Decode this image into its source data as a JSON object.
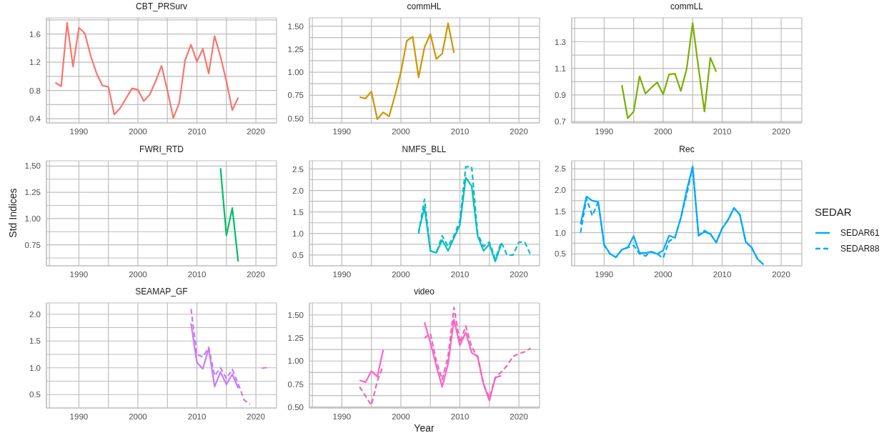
{
  "chart_data": [
    {
      "type": "line",
      "title": "CBT_PRSurv",
      "x": [
        1986,
        1987,
        1988,
        1989,
        1990,
        1991,
        1992,
        1993,
        1994,
        1995,
        1996,
        1997,
        1998,
        1999,
        2000,
        2001,
        2002,
        2003,
        2004,
        2005,
        2006,
        2007,
        2008,
        2009,
        2010,
        2011,
        2012,
        2013,
        2014,
        2015,
        2016,
        2017
      ],
      "series": [
        {
          "color": "#f8766d",
          "line_style": "solid",
          "values": [
            0.91,
            0.86,
            1.76,
            1.14,
            1.69,
            1.61,
            1.29,
            1.04,
            0.87,
            0.85,
            0.46,
            0.55,
            0.69,
            0.83,
            0.81,
            0.65,
            0.74,
            0.93,
            1.15,
            0.8,
            0.41,
            0.62,
            1.23,
            1.45,
            1.21,
            1.39,
            1.04,
            1.57,
            1.28,
            0.93,
            0.52,
            0.7
          ]
        }
      ],
      "xlim": [
        1984.5,
        2023.5
      ],
      "xticks": [
        {
          "value": 1985,
          "label": null
        },
        1990,
        {
          "value": 1995,
          "label": null
        },
        2000,
        {
          "value": 2005,
          "label": null
        },
        2010,
        {
          "value": 2015,
          "label": null
        },
        2020
      ],
      "ylim": [
        0.34,
        1.83
      ],
      "yticks": [
        0.4,
        {
          "value": 0.6,
          "label": null
        },
        0.8,
        {
          "value": 1.0,
          "label": null
        },
        1.2,
        {
          "value": 1.4,
          "label": null
        },
        1.6,
        {
          "value": 1.8,
          "label": null
        }
      ],
      "grid": true
    },
    {
      "type": "line",
      "title": "commHL",
      "x": [
        1993,
        1994,
        1995,
        1996,
        1997,
        1998,
        1999,
        2000,
        2001,
        2002,
        2003,
        2004,
        2005,
        2006,
        2007,
        2008,
        2009
      ],
      "series": [
        {
          "color": "#cd9600",
          "line_style": "solid",
          "values": [
            0.73,
            0.715,
            0.79,
            0.49,
            0.565,
            0.52,
            0.75,
            1.0,
            1.34,
            1.385,
            0.945,
            1.27,
            1.415,
            1.145,
            1.2,
            1.53,
            1.21
          ]
        }
      ],
      "xlim": [
        1984.5,
        2023.5
      ],
      "xticks": [
        {
          "value": 1985,
          "label": null
        },
        1990,
        {
          "value": 1995,
          "label": null
        },
        2000,
        {
          "value": 2005,
          "label": null
        },
        2010,
        {
          "value": 2015,
          "label": null
        },
        2020
      ],
      "ylim": [
        0.45,
        1.59
      ],
      "yticks": [
        {
          "value": 0.5,
          "label": "0.50"
        },
        {
          "value": 0.625,
          "label": null
        },
        {
          "value": 0.75,
          "label": "0.75"
        },
        {
          "value": 0.875,
          "label": null
        },
        {
          "value": 1.0,
          "label": "1.00"
        },
        {
          "value": 1.125,
          "label": null
        },
        {
          "value": 1.25,
          "label": "1.25"
        },
        {
          "value": 1.375,
          "label": null
        },
        {
          "value": 1.5,
          "label": "1.50"
        }
      ],
      "grid": true
    },
    {
      "type": "line",
      "title": "commLL",
      "x": [
        1993,
        1994,
        1995,
        1996,
        1997,
        1998,
        1999,
        2000,
        2001,
        2002,
        2003,
        2004,
        2005,
        2006,
        2007,
        2008,
        2009
      ],
      "series": [
        {
          "color": "#7cae00",
          "line_style": "solid",
          "values": [
            0.975,
            0.725,
            0.775,
            1.04,
            0.91,
            0.955,
            0.995,
            0.905,
            1.055,
            1.06,
            0.93,
            1.1,
            1.44,
            1.1,
            0.775,
            1.18,
            1.075
          ]
        }
      ],
      "xlim": [
        1984.5,
        2023.5
      ],
      "xticks": [
        {
          "value": 1985,
          "label": null
        },
        1990,
        {
          "value": 1995,
          "label": null
        },
        2000,
        {
          "value": 2005,
          "label": null
        },
        2010,
        {
          "value": 2015,
          "label": null
        },
        2020
      ],
      "ylim": [
        0.69,
        1.48
      ],
      "yticks": [
        0.7,
        {
          "value": 0.8,
          "label": null
        },
        0.9,
        {
          "value": 1.0,
          "label": null
        },
        1.1,
        {
          "value": 1.2,
          "label": null
        },
        1.3,
        {
          "value": 1.4,
          "label": null
        }
      ],
      "grid": true
    },
    {
      "type": "line",
      "title": "FWRI_RTD",
      "ylabel": "Std Indices",
      "x": [
        2014,
        2015,
        2016,
        2017
      ],
      "series": [
        {
          "color": "#00be67",
          "line_style": "solid",
          "values": [
            1.48,
            0.84,
            1.1,
            0.59
          ]
        }
      ],
      "xlim": [
        1984.5,
        2023.5
      ],
      "xticks": [
        {
          "value": 1985,
          "label": null
        },
        1990,
        {
          "value": 1995,
          "label": null
        },
        2000,
        {
          "value": 2005,
          "label": null
        },
        2010,
        {
          "value": 2015,
          "label": null
        },
        2020
      ],
      "ylim": [
        0.55,
        1.55
      ],
      "yticks": [
        {
          "value": 0.625,
          "label": null
        },
        {
          "value": 0.75,
          "label": "0.75"
        },
        {
          "value": 0.875,
          "label": null
        },
        {
          "value": 1.0,
          "label": "1.00"
        },
        {
          "value": 1.125,
          "label": null
        },
        {
          "value": 1.25,
          "label": "1.25"
        },
        {
          "value": 1.375,
          "label": null
        },
        {
          "value": 1.5,
          "label": "1.50"
        }
      ],
      "grid": true
    },
    {
      "type": "line",
      "title": "NMFS_BLL",
      "x": [
        2003,
        2004,
        2005,
        2006,
        2007,
        2008,
        2009,
        2010,
        2011,
        2012,
        2013,
        2014,
        2015,
        2016,
        2017,
        2018,
        2019,
        2020,
        2021,
        2022
      ],
      "series": [
        {
          "color": "#00bfc4",
          "line_style": "solid",
          "values": [
            1.05,
            1.6,
            0.6,
            0.55,
            0.85,
            0.6,
            0.9,
            1.2,
            2.3,
            2.1,
            0.95,
            0.6,
            0.75,
            0.35,
            0.75,
            null,
            null,
            null,
            null,
            null
          ]
        },
        {
          "color": "#00bfc4",
          "line_style": "dashed",
          "values": [
            1.0,
            1.8,
            0.6,
            0.55,
            0.95,
            0.7,
            0.95,
            1.3,
            2.55,
            2.55,
            1.0,
            0.7,
            0.8,
            0.4,
            0.8,
            0.5,
            0.5,
            0.8,
            0.8,
            0.5
          ]
        }
      ],
      "xlim": [
        1984.5,
        2023.5
      ],
      "xticks": [
        {
          "value": 1985,
          "label": null
        },
        1990,
        {
          "value": 1995,
          "label": null
        },
        2000,
        {
          "value": 2005,
          "label": null
        },
        2010,
        {
          "value": 2015,
          "label": null
        },
        2020
      ],
      "ylim": [
        0.25,
        2.69
      ],
      "yticks": [
        0.5,
        {
          "value": 0.75,
          "label": null
        },
        {
          "value": 1.0,
          "label": "1.0"
        },
        {
          "value": 1.25,
          "label": null
        },
        1.5,
        {
          "value": 1.75,
          "label": null
        },
        {
          "value": 2.0,
          "label": "2.0"
        },
        {
          "value": 2.25,
          "label": null
        },
        2.5
      ],
      "grid": true
    },
    {
      "type": "line",
      "title": "Rec",
      "legend": "right",
      "legend_title": "SEDAR",
      "x": [
        1986,
        1987,
        1988,
        1989,
        1990,
        1991,
        1992,
        1993,
        1994,
        1995,
        1996,
        1997,
        1998,
        1999,
        2000,
        2001,
        2002,
        2003,
        2004,
        2005,
        2006,
        2007,
        2008,
        2009,
        2010,
        2011,
        2012,
        2013,
        2014,
        2015,
        2016,
        2017
      ],
      "series": [
        {
          "name": "SEDAR61",
          "color": "#00a9ff",
          "line_style": "solid",
          "values": [
            1.2,
            1.85,
            1.75,
            1.72,
            0.72,
            0.5,
            0.42,
            0.6,
            0.65,
            0.92,
            0.52,
            0.52,
            0.55,
            0.5,
            0.58,
            0.93,
            0.88,
            1.35,
            2.0,
            2.55,
            0.93,
            1.02,
            0.97,
            0.77,
            1.1,
            1.3,
            1.58,
            1.42,
            0.78,
            0.65,
            0.38,
            0.25
          ]
        },
        {
          "name": "SEDAR88",
          "color": "#00a9ff",
          "line_style": "dashed",
          "values": [
            1.0,
            1.8,
            1.4,
            1.72,
            0.7,
            0.5,
            0.42,
            0.6,
            0.65,
            0.7,
            0.5,
            0.45,
            0.55,
            0.5,
            0.4,
            0.8,
            0.88,
            1.35,
            1.9,
            2.55,
            0.93,
            1.05,
            0.97,
            0.77,
            1.1,
            1.3,
            1.58,
            1.42,
            0.78,
            0.65,
            0.38,
            0.25
          ]
        }
      ],
      "xlim": [
        1984.5,
        2023.5
      ],
      "xticks": [
        {
          "value": 1985,
          "label": null
        },
        1990,
        {
          "value": 1995,
          "label": null
        },
        2000,
        {
          "value": 2005,
          "label": null
        },
        2010,
        {
          "value": 2015,
          "label": null
        },
        2020
      ],
      "ylim": [
        0.22,
        2.69
      ],
      "yticks": [
        0.5,
        {
          "value": 0.75,
          "label": null
        },
        {
          "value": 1.0,
          "label": "1.0"
        },
        {
          "value": 1.25,
          "label": null
        },
        1.5,
        {
          "value": 1.75,
          "label": null
        },
        {
          "value": 2.0,
          "label": "2.0"
        },
        {
          "value": 2.25,
          "label": null
        },
        2.5
      ],
      "grid": true
    },
    {
      "type": "line",
      "title": "SEAMAP_GF",
      "x": [
        2009,
        2010,
        2011,
        2012,
        2013,
        2014,
        2015,
        2016,
        2017,
        2018,
        2019,
        2020,
        2021,
        2022
      ],
      "series": [
        {
          "color": "#c77cff",
          "line_style": "solid",
          "values": [
            1.83,
            1.1,
            0.98,
            1.36,
            0.65,
            0.92,
            0.69,
            0.88,
            0.62,
            null,
            null,
            null,
            null,
            null
          ]
        },
        {
          "color": "#c77cff",
          "line_style": "dashed",
          "values": [
            2.1,
            1.25,
            1.2,
            1.38,
            0.85,
            1.0,
            0.8,
            0.97,
            0.7,
            0.4,
            0.32,
            null,
            0.99,
            1.01
          ]
        }
      ],
      "xlim": [
        1984.5,
        2023.5
      ],
      "xticks": [
        {
          "value": 1985,
          "label": null
        },
        1990,
        {
          "value": 1995,
          "label": null
        },
        2000,
        {
          "value": 2005,
          "label": null
        },
        2010,
        {
          "value": 2015,
          "label": null
        },
        2020
      ],
      "ylim": [
        0.25,
        2.21
      ],
      "yticks": [
        0.5,
        {
          "value": 0.75,
          "label": null
        },
        {
          "value": 1.0,
          "label": "1.0"
        },
        {
          "value": 1.25,
          "label": null
        },
        1.5,
        {
          "value": 1.75,
          "label": null
        },
        {
          "value": 2.0,
          "label": "2.0"
        }
      ],
      "grid": true
    },
    {
      "type": "line",
      "title": "video",
      "xlabel": "Year",
      "x": [
        1993,
        1994,
        1995,
        1996,
        1997,
        1998,
        1999,
        2000,
        2001,
        2002,
        2003,
        2004,
        2005,
        2006,
        2007,
        2008,
        2009,
        2010,
        2011,
        2012,
        2013,
        2014,
        2015,
        2016,
        2017,
        2018,
        2019,
        2020,
        2021,
        2022
      ],
      "series": [
        {
          "color": "#ff61cc",
          "line_style": "solid",
          "values": [
            0.79,
            0.77,
            0.89,
            0.83,
            1.12,
            null,
            null,
            null,
            null,
            null,
            null,
            1.42,
            1.2,
            0.95,
            0.72,
            0.97,
            1.45,
            1.17,
            1.31,
            1.09,
            1.05,
            0.75,
            0.57,
            0.82,
            0.84,
            null,
            null,
            null,
            null,
            null
          ]
        },
        {
          "color": "#e76bb0",
          "line_style": "dashed",
          "values": [
            0.72,
            0.62,
            0.52,
            0.78,
            0.95,
            null,
            null,
            null,
            null,
            null,
            null,
            1.25,
            1.3,
            1.0,
            0.8,
            1.05,
            1.58,
            1.2,
            1.38,
            1.15,
            1.05,
            0.75,
            0.6,
            0.82,
            0.88,
            0.95,
            1.05,
            1.08,
            1.1,
            1.14
          ]
        }
      ],
      "xlim": [
        1984.5,
        2023.5
      ],
      "xticks": [
        {
          "value": 1985,
          "label": null
        },
        1990,
        {
          "value": 1995,
          "label": null
        },
        2000,
        {
          "value": 2005,
          "label": null
        },
        2010,
        {
          "value": 2015,
          "label": null
        },
        2020
      ],
      "ylim": [
        0.49,
        1.63
      ],
      "yticks": [
        {
          "value": 0.5,
          "label": "0.50"
        },
        {
          "value": 0.625,
          "label": null
        },
        {
          "value": 0.75,
          "label": "0.75"
        },
        {
          "value": 0.875,
          "label": null
        },
        {
          "value": 1.0,
          "label": "1.00"
        },
        {
          "value": 1.125,
          "label": null
        },
        {
          "value": 1.25,
          "label": "1.25"
        },
        {
          "value": 1.375,
          "label": null
        },
        {
          "value": 1.5,
          "label": "1.50"
        }
      ],
      "grid": true
    }
  ]
}
